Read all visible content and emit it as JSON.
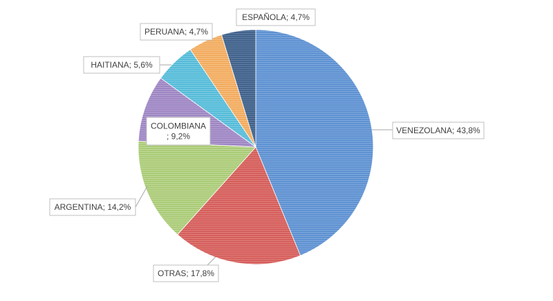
{
  "chart_data": {
    "type": "pie",
    "title": "",
    "start_angle_deg": 0,
    "direction": "clockwise",
    "slices": [
      {
        "label": "VENEZOLANA",
        "value": 43.8,
        "text": "VENEZOLANA; 43,8%",
        "color": "#5b8ed0",
        "stripe": "#7fa9dd"
      },
      {
        "label": "OTRAS",
        "value": 17.8,
        "text": "OTRAS; 17,8%",
        "color": "#d35a57",
        "stripe": "#e07f7c"
      },
      {
        "label": "ARGENTINA",
        "value": 14.2,
        "text": "ARGENTINA; 14,2%",
        "color": "#a7c972",
        "stripe": "#c2da9a"
      },
      {
        "label": "COLOMBIANA",
        "value": 9.2,
        "text_lines": [
          "COLOMBIANA",
          "; 9,2%"
        ],
        "color": "#9a82c1",
        "stripe": "#b6a3d3"
      },
      {
        "label": "HAITIANA",
        "value": 5.6,
        "text": "HAITIANA; 5,6%",
        "color": "#50b9d7",
        "stripe": "#7fcde3"
      },
      {
        "label": "PERUANA",
        "value": 4.7,
        "text": "PERUANA; 4,7%",
        "color": "#f2a85a",
        "stripe": "#f6c286"
      },
      {
        "label": "ESPAÑOLA",
        "value": 4.7,
        "text": "ESPAÑOLA; 4,7%",
        "color": "#3f5f86",
        "stripe": "#5f7ea6"
      }
    ]
  }
}
